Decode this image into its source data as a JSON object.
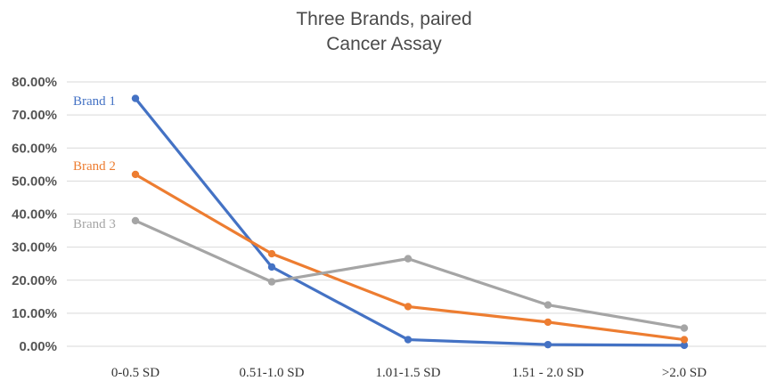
{
  "chart_data": {
    "type": "line",
    "title": [
      "Three Brands, paired",
      "Cancer Assay"
    ],
    "xlabel": "",
    "ylabel": "",
    "categories": [
      "0-0.5 SD",
      "0.51-1.0 SD",
      "1.01-1.5 SD",
      "1.51 - 2.0 SD",
      ">2.0 SD"
    ],
    "ylim": [
      0,
      80
    ],
    "yticks": [
      0,
      10,
      20,
      30,
      40,
      50,
      60,
      70,
      80
    ],
    "ytick_labels": [
      "0.00%",
      "10.00%",
      "20.00%",
      "30.00%",
      "40.00%",
      "50.00%",
      "60.00%",
      "70.00%",
      "80.00%"
    ],
    "grid": true,
    "legend": "inline labels at left",
    "series": [
      {
        "name": "Brand 1",
        "color": "#4472c4",
        "values": [
          75,
          24,
          2,
          0.5,
          0.3
        ]
      },
      {
        "name": "Brand 2",
        "color": "#ed7d31",
        "values": [
          52,
          28,
          12,
          7.3,
          2
        ]
      },
      {
        "name": "Brand 3",
        "color": "#a5a5a5",
        "values": [
          38,
          19.5,
          26.5,
          12.5,
          5.5
        ]
      }
    ]
  }
}
